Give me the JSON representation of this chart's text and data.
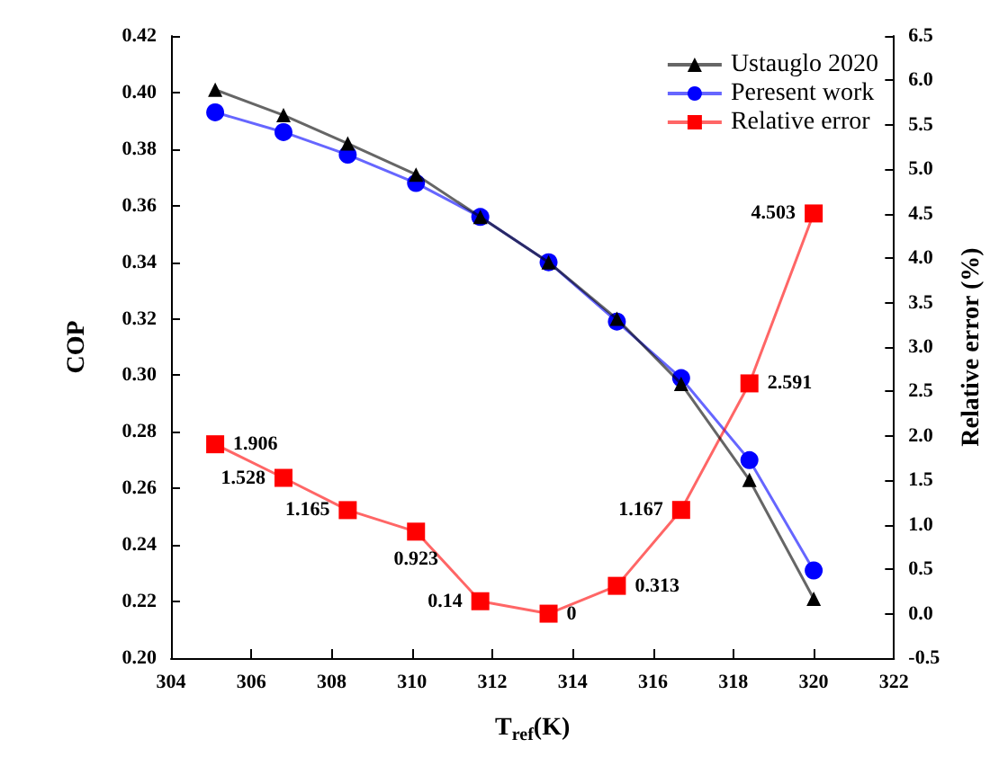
{
  "chart_data": {
    "type": "line",
    "x": [
      305.1,
      306.8,
      308.4,
      310.1,
      311.7,
      313.4,
      315.1,
      316.7,
      318.4,
      320.0
    ],
    "series": [
      {
        "name": "Ustauglo 2020",
        "color": "#000000",
        "marker": "triangle",
        "values": [
          0.401,
          0.392,
          0.382,
          0.371,
          0.356,
          0.34,
          0.32,
          0.297,
          0.263,
          0.221
        ]
      },
      {
        "name": "Peresent work",
        "color": "#0000ff",
        "marker": "circle",
        "values": [
          0.393,
          0.386,
          0.378,
          0.368,
          0.356,
          0.34,
          0.319,
          0.299,
          0.27,
          0.231
        ]
      },
      {
        "name": "Relative error",
        "color": "#ff0000",
        "marker": "square",
        "axis": "y2",
        "data_labels": true,
        "values": [
          1.906,
          1.528,
          1.165,
          0.923,
          0.14,
          0,
          0.313,
          1.167,
          2.591,
          4.503
        ]
      }
    ],
    "xlabel": "T$_{ref}$(K)",
    "ylabel": "COP",
    "y2label": "Relative error (%)",
    "xlim": [
      304,
      322
    ],
    "xticks": [
      304,
      306,
      308,
      310,
      312,
      314,
      316,
      318,
      320,
      322
    ],
    "ylim": [
      0.2,
      0.42
    ],
    "yticks": [
      {
        "value": 0.2,
        "label": "0.20"
      },
      0.22,
      0.24,
      0.26,
      0.28,
      {
        "value": 0.3,
        "label": "0.30"
      },
      0.32,
      0.34,
      0.36,
      0.38,
      {
        "value": 0.4,
        "label": "0.40"
      },
      0.42
    ],
    "y2lim": [
      -0.5,
      6.5
    ],
    "y2ticks": [
      -0.5,
      {
        "value": 0,
        "label": "0.0"
      },
      0.5,
      {
        "value": 1,
        "label": "1.0"
      },
      1.5,
      {
        "value": 2,
        "label": "2.0"
      },
      2.5,
      {
        "value": 3,
        "label": "3.0"
      },
      3.5,
      {
        "value": 4,
        "label": "4.0"
      },
      4.5,
      {
        "value": 5,
        "label": "5.0"
      },
      5.5,
      {
        "value": 6,
        "label": "6.0"
      },
      6.5
    ],
    "legend": "top right",
    "grid": false
  }
}
